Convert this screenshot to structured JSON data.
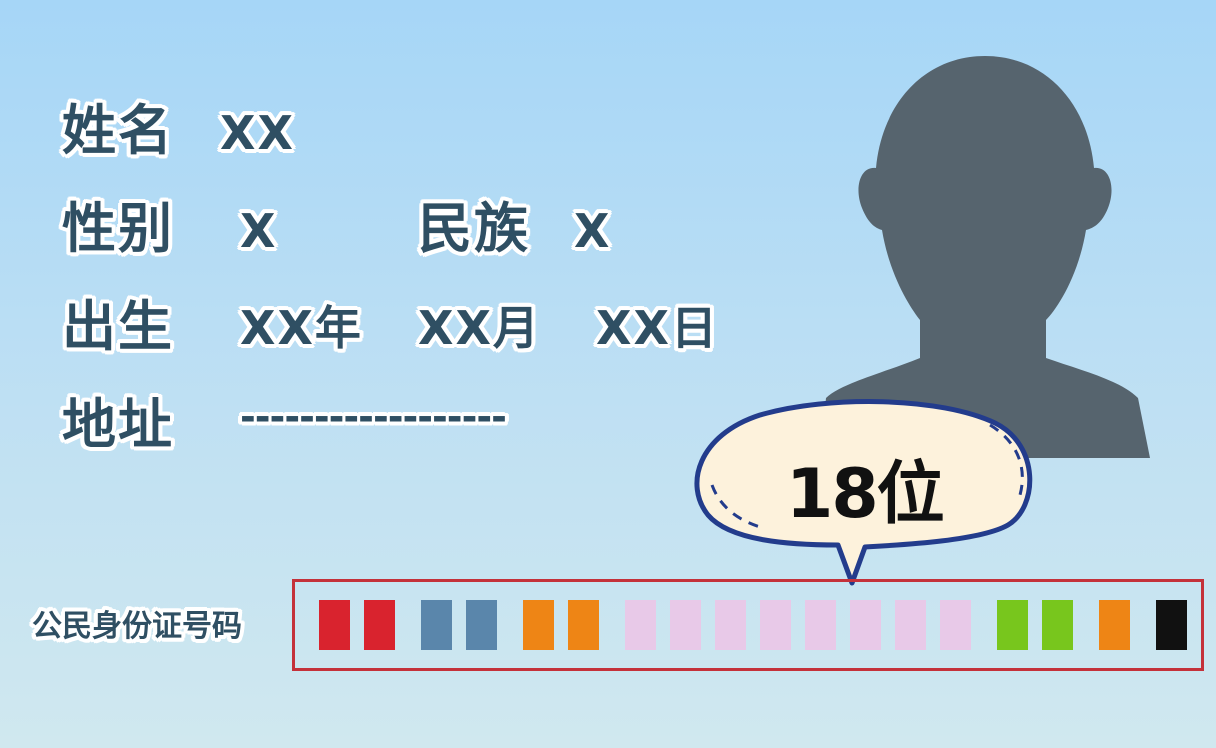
{
  "card": {
    "name_label": "姓名",
    "name_value": "XX",
    "gender_label": "性别",
    "gender_value": "X",
    "ethnicity_label": "民族",
    "ethnicity_value": "X",
    "birth_label": "出生",
    "birth_year": "XX年",
    "birth_month": "XX月",
    "birth_day": "XX日",
    "address_label": "地址",
    "address_value": "------------------"
  },
  "callout": {
    "text": "18位"
  },
  "id_number": {
    "label": "公民身份证号码",
    "digits": [
      {
        "color": "#d9232e"
      },
      {
        "color": "#d9232e"
      },
      {
        "color": "#5a86ab"
      },
      {
        "color": "#5a86ab"
      },
      {
        "color": "#ee8515"
      },
      {
        "color": "#ee8515"
      },
      {
        "color": "#e8c9e8"
      },
      {
        "color": "#e8c9e8"
      },
      {
        "color": "#e8c9e8"
      },
      {
        "color": "#e8c9e8"
      },
      {
        "color": "#e8c9e8"
      },
      {
        "color": "#e8c9e8"
      },
      {
        "color": "#e8c9e8"
      },
      {
        "color": "#e8c9e8"
      },
      {
        "color": "#78c61d"
      },
      {
        "color": "#78c61d"
      },
      {
        "color": "#ee8515"
      },
      {
        "color": "#111111"
      }
    ]
  },
  "colors": {
    "text": "#2f4f63",
    "silhouette": "#56646e",
    "bubble_fill": "#fdf2dc",
    "bubble_border": "#233c8c",
    "frame": "#c4313a"
  }
}
